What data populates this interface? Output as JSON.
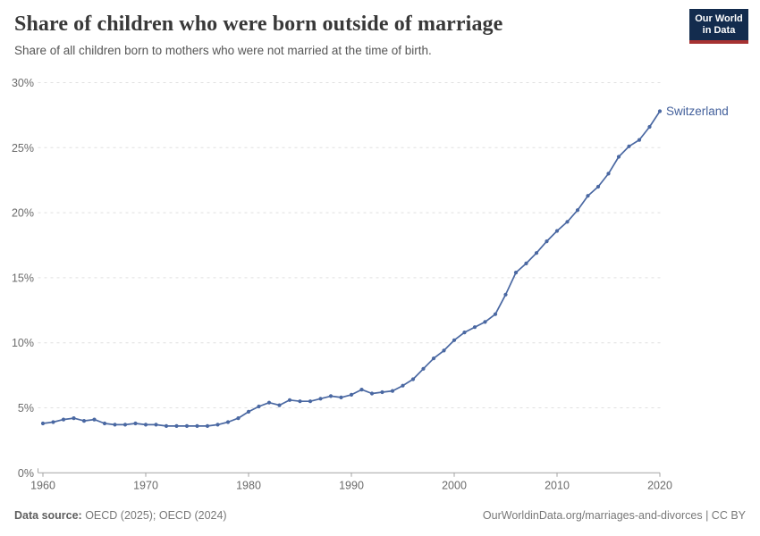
{
  "header": {
    "title": "Share of children who were born outside of marriage",
    "subtitle": "Share of all children born to mothers who were not married at the time of birth."
  },
  "logo": {
    "line1": "Our World",
    "line2": "in Data"
  },
  "footer": {
    "source_label": "Data source:",
    "source_value": " OECD (2025); OECD (2024)",
    "credit": "OurWorldinData.org/marriages-and-divorces | CC BY"
  },
  "colors": {
    "series_blue": "#4a68a2",
    "end_label_blue": "#44619c",
    "grid": "#e0e0e0",
    "axis": "#a3a3a3",
    "tick_label": "#6b6b6b",
    "title_text": "#383838",
    "subtitle_text": "#555555",
    "footer_text": "#787878",
    "logo_bg": "#132c4e",
    "logo_red": "#a63232"
  },
  "chart_data": {
    "type": "line",
    "title": "Share of children who were born outside of marriage",
    "xlabel": "",
    "ylabel": "",
    "grid": "horizontal-dashed",
    "legend_position": "end-of-line-label",
    "xlim": [
      1960,
      2020
    ],
    "ylim": [
      0,
      30
    ],
    "x_ticks": [
      1960,
      1970,
      1980,
      1990,
      2000,
      2010,
      2020
    ],
    "y_ticks": [
      0,
      5,
      10,
      15,
      20,
      25,
      30
    ],
    "y_tick_suffix": "%",
    "series": [
      {
        "name": "Switzerland",
        "color": "#4a68a2",
        "x": [
          1960,
          1961,
          1962,
          1963,
          1964,
          1965,
          1966,
          1967,
          1968,
          1969,
          1970,
          1971,
          1972,
          1973,
          1974,
          1975,
          1976,
          1977,
          1978,
          1979,
          1980,
          1981,
          1982,
          1983,
          1984,
          1985,
          1986,
          1987,
          1988,
          1989,
          1990,
          1991,
          1992,
          1993,
          1994,
          1995,
          1996,
          1997,
          1998,
          1999,
          2000,
          2001,
          2002,
          2003,
          2004,
          2005,
          2006,
          2007,
          2008,
          2009,
          2010,
          2011,
          2012,
          2013,
          2014,
          2015,
          2016,
          2017,
          2018,
          2019,
          2020
        ],
        "values": [
          3.8,
          3.9,
          4.1,
          4.2,
          4.0,
          4.1,
          3.8,
          3.7,
          3.7,
          3.8,
          3.7,
          3.7,
          3.6,
          3.6,
          3.6,
          3.6,
          3.6,
          3.7,
          3.9,
          4.2,
          4.7,
          5.1,
          5.4,
          5.2,
          5.6,
          5.5,
          5.5,
          5.7,
          5.9,
          5.8,
          6.0,
          6.4,
          6.1,
          6.2,
          6.3,
          6.7,
          7.2,
          8.0,
          8.8,
          9.4,
          10.2,
          10.8,
          11.2,
          11.6,
          12.2,
          13.7,
          15.4,
          16.1,
          16.9,
          17.8,
          18.6,
          19.3,
          20.2,
          21.3,
          22.0,
          23.0,
          24.3,
          25.1,
          25.6,
          26.6,
          27.8
        ]
      }
    ]
  }
}
